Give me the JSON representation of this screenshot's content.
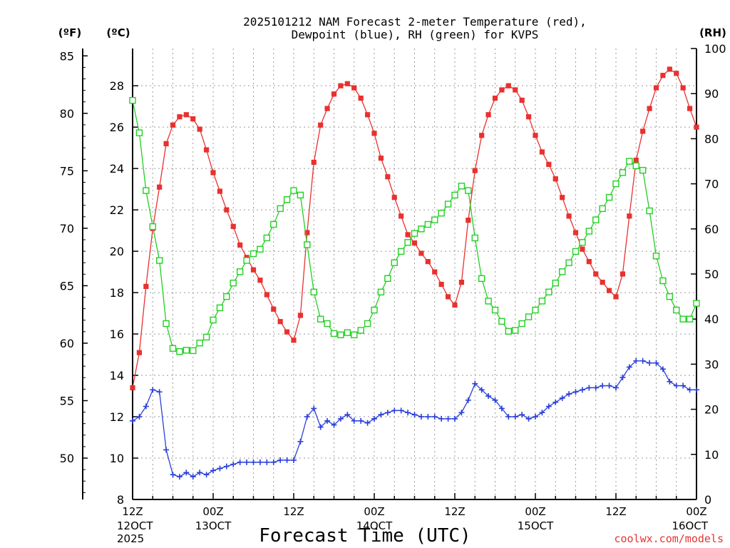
{
  "chart_data": {
    "type": "line",
    "title_line1": "2025101212 NAM Forecast 2-meter Temperature (red),",
    "title_line2": "Dewpoint (blue), RH (green) for KVPS",
    "units": {
      "left_f": "(ºF)",
      "left_c": "(ºC)",
      "right_rh": "(RH)"
    },
    "xlabel": "Forecast Time (UTC)",
    "credit": "coolwx.com/models",
    "x_range_hours": [
      0,
      84
    ],
    "x_ticks": [
      {
        "hour": 0,
        "l1": "12Z",
        "l2": "12OCT",
        "l3": "2025"
      },
      {
        "hour": 12,
        "l1": "00Z",
        "l2": "13OCT",
        "l3": ""
      },
      {
        "hour": 24,
        "l1": "12Z",
        "l2": "",
        "l3": ""
      },
      {
        "hour": 36,
        "l1": "00Z",
        "l2": "14OCT",
        "l3": ""
      },
      {
        "hour": 48,
        "l1": "12Z",
        "l2": "",
        "l3": ""
      },
      {
        "hour": 60,
        "l1": "00Z",
        "l2": "15OCT",
        "l3": ""
      },
      {
        "hour": 72,
        "l1": "12Z",
        "l2": "",
        "l3": ""
      },
      {
        "hour": 84,
        "l1": "00Z",
        "l2": "16OCT",
        "l3": ""
      }
    ],
    "y_celsius": {
      "range": [
        8,
        29.8
      ],
      "ticks": [
        8,
        10,
        12,
        14,
        16,
        18,
        20,
        22,
        24,
        26,
        28
      ]
    },
    "y_fahrenheit": {
      "ticks": [
        50,
        55,
        60,
        65,
        70,
        75,
        80,
        85
      ]
    },
    "y_rh": {
      "range": [
        0,
        100
      ],
      "ticks": [
        0,
        10,
        20,
        30,
        40,
        50,
        60,
        70,
        80,
        90,
        100
      ]
    },
    "series": [
      {
        "name": "Temperature",
        "unit": "C",
        "color": "#e8312f",
        "marker": "filled-square",
        "values": [
          13.4,
          15.1,
          18.3,
          21.1,
          23.1,
          25.2,
          26.1,
          26.5,
          26.6,
          26.4,
          25.9,
          24.9,
          23.8,
          22.9,
          22.0,
          21.2,
          20.3,
          19.7,
          19.1,
          18.6,
          17.9,
          17.2,
          16.6,
          16.1,
          15.7,
          16.9,
          20.9,
          24.3,
          26.1,
          26.9,
          27.6,
          28.0,
          28.1,
          27.9,
          27.4,
          26.6,
          25.7,
          24.5,
          23.6,
          22.6,
          21.7,
          20.8,
          20.4,
          19.9,
          19.5,
          19.0,
          18.4,
          17.8,
          17.4,
          18.5,
          21.5,
          23.9,
          25.6,
          26.6,
          27.4,
          27.8,
          28.0,
          27.8,
          27.3,
          26.5,
          25.6,
          24.8,
          24.2,
          23.5,
          22.6,
          21.7,
          20.9,
          20.1,
          19.5,
          18.9,
          18.5,
          18.1,
          17.8,
          18.9,
          21.7,
          24.4,
          25.8,
          26.9,
          27.9,
          28.5,
          28.8,
          28.6,
          27.9,
          26.9,
          26.0
        ]
      },
      {
        "name": "Dewpoint",
        "unit": "C",
        "color": "#2a3fd8",
        "marker": "plus",
        "values": [
          11.8,
          12.0,
          12.5,
          13.3,
          13.2,
          10.4,
          9.2,
          9.1,
          9.3,
          9.1,
          9.3,
          9.2,
          9.4,
          9.5,
          9.6,
          9.7,
          9.8,
          9.8,
          9.8,
          9.8,
          9.8,
          9.8,
          9.9,
          9.9,
          9.9,
          10.8,
          12.0,
          12.4,
          11.5,
          11.8,
          11.6,
          11.9,
          12.1,
          11.8,
          11.8,
          11.7,
          11.9,
          12.1,
          12.2,
          12.3,
          12.3,
          12.2,
          12.1,
          12.0,
          12.0,
          12.0,
          11.9,
          11.9,
          11.9,
          12.2,
          12.8,
          13.6,
          13.3,
          13.0,
          12.8,
          12.4,
          12.0,
          12.0,
          12.1,
          11.9,
          12.0,
          12.2,
          12.5,
          12.7,
          12.9,
          13.1,
          13.2,
          13.3,
          13.4,
          13.4,
          13.5,
          13.5,
          13.4,
          13.9,
          14.4,
          14.7,
          14.7,
          14.6,
          14.6,
          14.3,
          13.7,
          13.5,
          13.5,
          13.3,
          13.3
        ]
      },
      {
        "name": "RH",
        "unit": "%",
        "color": "#22d022",
        "marker": "open-square",
        "values": [
          88.5,
          81.3,
          68.5,
          60.5,
          53.0,
          39.0,
          33.5,
          32.8,
          33.1,
          33.0,
          34.7,
          36.0,
          39.8,
          42.5,
          45.0,
          48.0,
          50.5,
          53.0,
          54.5,
          55.5,
          58.0,
          61.0,
          64.5,
          66.5,
          68.5,
          67.5,
          56.5,
          46.0,
          40.0,
          39.0,
          36.8,
          36.5,
          37.0,
          36.5,
          37.5,
          39.0,
          42.0,
          46.0,
          49.0,
          52.5,
          55.0,
          57.0,
          59.0,
          60.0,
          61.0,
          62.0,
          63.5,
          65.5,
          67.5,
          69.5,
          68.5,
          58.0,
          49.0,
          44.0,
          42.0,
          39.5,
          37.3,
          37.5,
          39.0,
          40.5,
          42.0,
          44.0,
          46.0,
          48.0,
          50.5,
          52.5,
          55.0,
          57.0,
          59.5,
          62.0,
          64.5,
          67.0,
          70.0,
          72.5,
          75.0,
          74.0,
          73.0,
          64.0,
          54.0,
          48.5,
          45.0,
          42.0,
          40.0,
          40.0,
          43.5
        ]
      }
    ]
  }
}
